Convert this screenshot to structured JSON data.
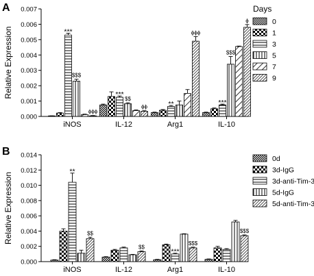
{
  "chart_data": [
    {
      "panel_label": "A",
      "type": "bar",
      "ylabel": "Relative Expression",
      "ylim": [
        0,
        0.007
      ],
      "yticks": [
        "0.000",
        "0.001",
        "0.002",
        "0.003",
        "0.004",
        "0.005",
        "0.006",
        "0.007"
      ],
      "categories": [
        "iNOS",
        "IL-12",
        "Arg1",
        "IL-10"
      ],
      "legend_title": "Days",
      "legend_position": "right",
      "series": [
        {
          "name": "0",
          "pattern": "fine-check",
          "values": [
            3e-05,
            0.00075,
            0.00025,
            0.00025
          ],
          "errors": [
            1e-05,
            5e-05,
            3e-05,
            3e-05
          ]
        },
        {
          "name": "1",
          "pattern": "coarse-check",
          "values": [
            0.00022,
            0.0013,
            0.0004,
            0.0005
          ],
          "errors": [
            3e-05,
            0.0003,
            5e-05,
            5e-05
          ]
        },
        {
          "name": "3",
          "pattern": "horizontal-lines",
          "values": [
            0.0053,
            0.00125,
            0.00065,
            0.00075
          ],
          "errors": [
            0.00012,
            8e-05,
            6e-05,
            5e-05
          ]
        },
        {
          "name": "5",
          "pattern": "vertical-lines",
          "values": [
            0.0023,
            0.00083,
            0.00075,
            0.0034
          ],
          "errors": [
            0.00012,
            6e-05,
            0.00025,
            0.0005
          ]
        },
        {
          "name": "7",
          "pattern": "sparse-diagonal",
          "values": [
            0.00012,
            0.00038,
            0.0015,
            0.00455
          ],
          "errors": [
            3e-05,
            4e-05,
            0.00025,
            3e-05
          ]
        },
        {
          "name": "9",
          "pattern": "dense-diagonal",
          "values": [
            4e-05,
            0.00033,
            0.0049,
            0.0058
          ],
          "errors": [
            2e-05,
            4e-05,
            0.0003,
            0.00018
          ]
        }
      ],
      "annotations": [
        {
          "text": "***",
          "category": 0,
          "series": 2
        },
        {
          "text": "$$$",
          "category": 0,
          "series": 3
        },
        {
          "text": "ϕϕϕ",
          "category": 0,
          "series": 5
        },
        {
          "text": "***",
          "category": 1,
          "series": 2
        },
        {
          "text": "$$",
          "category": 1,
          "series": 3
        },
        {
          "text": "ϕϕ",
          "category": 1,
          "series": 5
        },
        {
          "text": "**",
          "category": 2,
          "series": 2
        },
        {
          "text": "ϕϕϕ",
          "category": 2,
          "series": 5
        },
        {
          "text": "***",
          "category": 3,
          "series": 2
        },
        {
          "text": "$$$",
          "category": 3,
          "series": 3
        },
        {
          "text": "ϕ",
          "category": 3,
          "series": 5
        }
      ]
    },
    {
      "panel_label": "B",
      "type": "bar",
      "ylabel": "Relative Expression",
      "ylim": [
        0,
        0.014
      ],
      "yticks": [
        "0.000",
        "0.002",
        "0.004",
        "0.006",
        "0.008",
        "0.010",
        "0.012",
        "0.014"
      ],
      "categories": [
        "iNOS",
        "IL-12",
        "Arg1",
        "IL-10"
      ],
      "legend_position": "right",
      "series": [
        {
          "name": "0d",
          "pattern": "fine-check",
          "values": [
            0.0002,
            0.0006,
            0.00025,
            0.0003
          ],
          "errors": [
            5e-05,
            5e-05,
            5e-05,
            5e-05
          ]
        },
        {
          "name": "3d-IgG",
          "pattern": "coarse-check",
          "values": [
            0.004,
            0.0015,
            0.0022,
            0.0018
          ],
          "errors": [
            0.0003,
            0.0001,
            0.0001,
            0.0002
          ]
        },
        {
          "name": "3d-anti-Tim-3",
          "pattern": "horizontal-lines",
          "values": [
            0.0104,
            0.0018,
            0.001,
            0.0016
          ],
          "errors": [
            0.0012,
            0.0001,
            0.0001,
            0.0001
          ]
        },
        {
          "name": "5d-IgG",
          "pattern": "vertical-lines",
          "values": [
            0.0011,
            0.0009,
            0.0036,
            0.0052
          ],
          "errors": [
            0.0004,
            5e-05,
            5e-05,
            0.0002
          ]
        },
        {
          "name": "5d-anti-Tim-3",
          "pattern": "dense-diagonal",
          "values": [
            0.003,
            0.0013,
            0.0018,
            0.0034
          ],
          "errors": [
            0.0002,
            0.0001,
            0.0001,
            0.0001
          ]
        }
      ],
      "annotations": [
        {
          "text": "**",
          "category": 0,
          "series": 2
        },
        {
          "text": "$$",
          "category": 0,
          "series": 4
        },
        {
          "text": "$$",
          "category": 1,
          "series": 4
        },
        {
          "text": "***",
          "category": 2,
          "series": 2
        },
        {
          "text": "$$$",
          "category": 2,
          "series": 4
        },
        {
          "text": "$$$",
          "category": 3,
          "series": 4
        }
      ]
    }
  ]
}
